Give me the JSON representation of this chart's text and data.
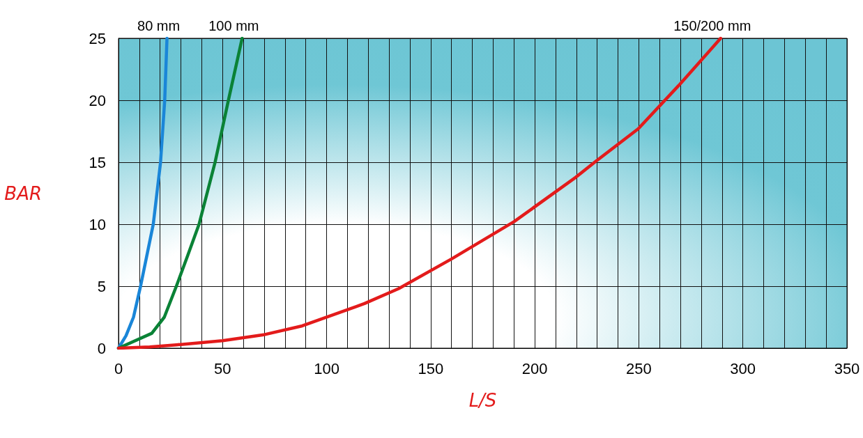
{
  "chart_data": {
    "type": "line",
    "xlabel": "L/S",
    "ylabel": "BAR",
    "xlim": [
      0,
      350
    ],
    "ylim": [
      0,
      25
    ],
    "xticks": [
      0,
      {
        "value": 10,
        "label": null
      },
      {
        "value": 20,
        "label": null
      },
      {
        "value": 30,
        "label": null
      },
      {
        "value": 40,
        "label": null
      },
      50,
      {
        "value": 60,
        "label": null
      },
      {
        "value": 70,
        "label": null
      },
      {
        "value": 80,
        "label": null
      },
      {
        "value": 90,
        "label": null
      },
      100,
      {
        "value": 110,
        "label": null
      },
      {
        "value": 120,
        "label": null
      },
      {
        "value": 130,
        "label": null
      },
      {
        "value": 140,
        "label": null
      },
      150,
      {
        "value": 160,
        "label": null
      },
      {
        "value": 170,
        "label": null
      },
      {
        "value": 180,
        "label": null
      },
      {
        "value": 190,
        "label": null
      },
      200,
      {
        "value": 210,
        "label": null
      },
      {
        "value": 220,
        "label": null
      },
      {
        "value": 230,
        "label": null
      },
      {
        "value": 240,
        "label": null
      },
      250,
      {
        "value": 260,
        "label": null
      },
      {
        "value": 270,
        "label": null
      },
      {
        "value": 280,
        "label": null
      },
      {
        "value": 290,
        "label": null
      },
      300,
      {
        "value": 310,
        "label": null
      },
      {
        "value": 320,
        "label": null
      },
      {
        "value": 330,
        "label": null
      },
      {
        "value": 340,
        "label": null
      },
      350
    ],
    "yticks": [
      0,
      5,
      10,
      15,
      20,
      25
    ],
    "grid": true,
    "marker": "none",
    "line_style": "solid",
    "legend": false,
    "series": [
      {
        "name": "80 mm",
        "color": "#1a86d8",
        "x": [
          0,
          3.6,
          7.2,
          10.6,
          16.7,
          20.2,
          22.2,
          23.3
        ],
        "values": [
          0,
          1,
          2.5,
          5,
          10,
          15,
          20,
          25
        ]
      },
      {
        "name": "100 mm",
        "color": "#0a8236",
        "x": [
          0,
          16,
          22,
          27.8,
          33.3,
          38.7,
          46.4,
          52.8,
          59.4
        ],
        "values": [
          0,
          1.2,
          2.5,
          5,
          7.5,
          10,
          15,
          20,
          25
        ]
      },
      {
        "name": "150/200 mm",
        "color": "#e31b1b",
        "x": [
          0,
          15,
          30,
          50,
          70.3,
          88.3,
          118.2,
          134.6,
          160,
          190,
          219.8,
          229.5,
          249.7,
          269.2,
          289.3
        ],
        "values": [
          0,
          0.1,
          0.3,
          0.6,
          1.1,
          1.8,
          3.6,
          4.8,
          7.2,
          10.2,
          13.8,
          15.1,
          17.7,
          21.2,
          25
        ]
      }
    ]
  }
}
